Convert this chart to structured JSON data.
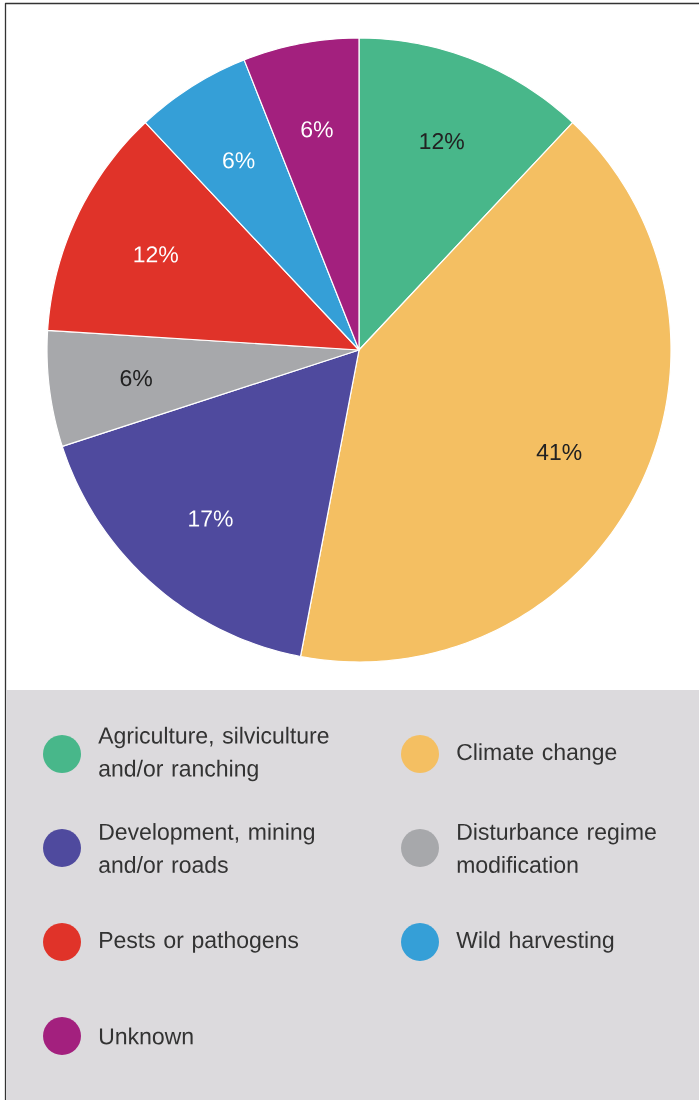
{
  "chart_data": {
    "type": "pie",
    "categories": [
      "Agriculture, silviculture and/or ranching",
      "Climate change",
      "Development, mining and/or roads",
      "Disturbance regime modification",
      "Pests or pathogens",
      "Wild harvesting",
      "Unknown"
    ],
    "values": [
      12,
      41,
      17,
      6,
      12,
      6,
      6
    ],
    "colors": [
      "#48b78a",
      "#f4bf62",
      "#4f4a9e",
      "#a7a8ab",
      "#e03329",
      "#359fd7",
      "#a3207e"
    ],
    "value_labels": [
      "12%",
      "41%",
      "17%",
      "6%",
      "12%",
      "6%",
      "6%"
    ],
    "legend": "bottom"
  }
}
